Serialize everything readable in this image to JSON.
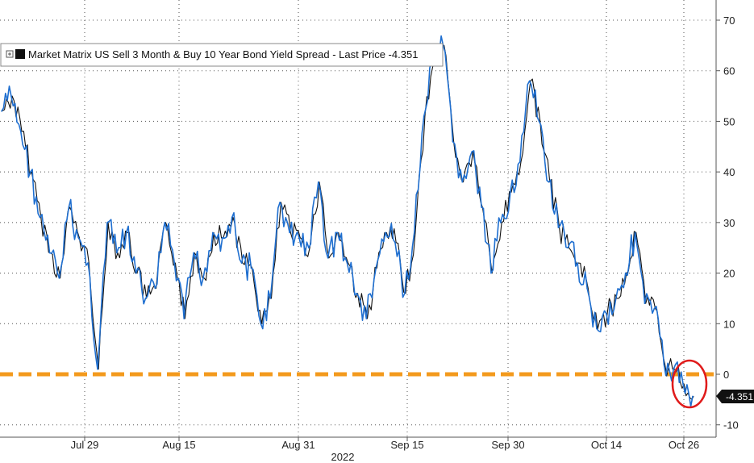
{
  "legend": {
    "expand_icon": "plus-box-icon",
    "text": "Market Matrix US Sell 3 Month & Buy 10 Year Bond Yield Spread - Last Price -4.351"
  },
  "last_price_label": "-4.351",
  "year_label": "2022",
  "colors": {
    "series_blue": "#1f6fd0",
    "series_black": "#111111",
    "zero_line": "#f39a1d",
    "highlight_circle": "#e01b1b",
    "last_price_bg": "#111111"
  },
  "chart_data": {
    "type": "line",
    "title": "Market Matrix US Sell 3 Month & Buy 10 Year Bond Yield Spread",
    "xlabel": "2022",
    "ylabel": "",
    "x_ticks": [
      "Jul 29",
      "Aug 15",
      "Aug 31",
      "Sep 15",
      "Sep 30",
      "Oct 14",
      "Oct 26"
    ],
    "y_ticks": [
      70,
      60,
      50,
      40,
      30,
      20,
      10,
      0,
      -10
    ],
    "ylim": [
      -12,
      73
    ],
    "y_axis_side": "right",
    "grid": true,
    "legend_position": "top-left",
    "last_price": -4.351,
    "reference_line": {
      "y": 0,
      "style": "dashed",
      "color": "#f39a1d"
    },
    "highlight": {
      "shape": "circle",
      "around": "last values",
      "color": "#e01b1b"
    },
    "series": [
      {
        "name": "Market Matrix US Sell 3 Month & Buy 10 Year Bond Yield Spread",
        "x": [
          "Jul 18",
          "Jul 19",
          "Jul 20",
          "Jul 21",
          "Jul 22",
          "Jul 25",
          "Jul 26",
          "Jul 27",
          "Jul 28",
          "Jul 29",
          "Aug 1",
          "Aug 2",
          "Aug 3",
          "Aug 4",
          "Aug 5",
          "Aug 8",
          "Aug 9",
          "Aug 10",
          "Aug 11",
          "Aug 12",
          "Aug 15",
          "Aug 16",
          "Aug 17",
          "Aug 18",
          "Aug 19",
          "Aug 22",
          "Aug 23",
          "Aug 24",
          "Aug 25",
          "Aug 26",
          "Aug 29",
          "Aug 30",
          "Aug 31",
          "Sep 1",
          "Sep 2",
          "Sep 6",
          "Sep 7",
          "Sep 8",
          "Sep 9",
          "Sep 12",
          "Sep 13",
          "Sep 14",
          "Sep 15",
          "Sep 16",
          "Sep 19",
          "Sep 20",
          "Sep 21",
          "Sep 22",
          "Sep 23",
          "Sep 26",
          "Sep 27",
          "Sep 28",
          "Sep 29",
          "Sep 30",
          "Oct 3",
          "Oct 4",
          "Oct 5",
          "Oct 6",
          "Oct 7",
          "Oct 10",
          "Oct 11",
          "Oct 12",
          "Oct 13",
          "Oct 14",
          "Oct 17",
          "Oct 18",
          "Oct 19",
          "Oct 20",
          "Oct 21",
          "Oct 24",
          "Oct 25",
          "Oct 26",
          "Oct 27"
        ],
        "values": [
          52,
          55,
          48,
          40,
          31,
          24,
          19,
          33,
          27,
          22,
          1,
          30,
          24,
          28,
          20,
          15,
          17,
          30,
          22,
          11,
          24,
          19,
          28,
          27,
          31,
          22,
          21,
          10,
          15,
          34,
          28,
          27,
          25,
          38,
          23,
          28,
          22,
          16,
          11,
          21,
          28,
          26,
          16,
          28,
          51,
          62,
          65,
          46,
          38,
          44,
          33,
          20,
          30,
          36,
          42,
          58,
          50,
          38,
          29,
          25,
          22,
          17,
          9,
          12,
          15,
          20,
          28,
          14,
          13,
          2,
          1,
          -2,
          -4.351
        ]
      }
    ]
  }
}
